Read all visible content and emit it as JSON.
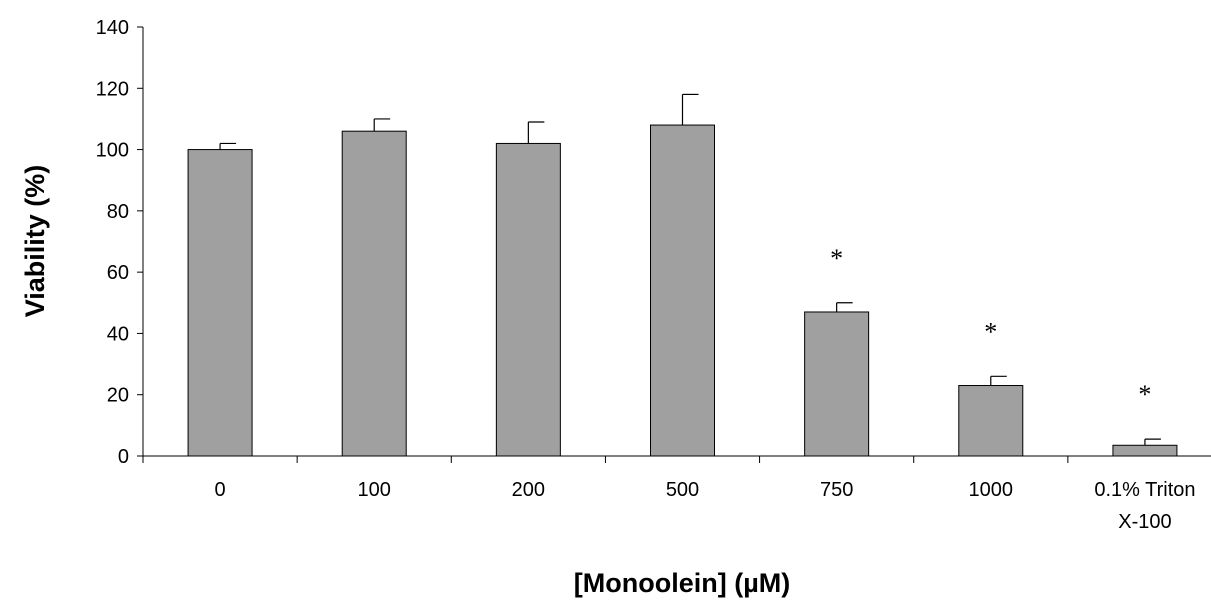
{
  "chart_data": {
    "type": "bar",
    "title": "",
    "xlabel": "[Monoolein] (µM)",
    "ylabel": "Viability (%)",
    "ylim": [
      0,
      140
    ],
    "yticks": [
      0,
      20,
      40,
      60,
      80,
      100,
      120,
      140
    ],
    "categories": [
      [
        "0"
      ],
      [
        "100"
      ],
      [
        "200"
      ],
      [
        "500"
      ],
      [
        "750"
      ],
      [
        "1000"
      ],
      [
        "0.1% Triton",
        "X-100"
      ]
    ],
    "values": [
      100,
      106,
      102,
      108,
      47,
      23,
      3.5
    ],
    "errors": [
      2,
      4,
      7,
      10,
      3,
      3,
      2
    ],
    "annotations": [
      "",
      "",
      "",
      "",
      "*",
      "*",
      "*"
    ],
    "bar_color": "#a0a0a0",
    "grid": false,
    "legend": "none"
  }
}
